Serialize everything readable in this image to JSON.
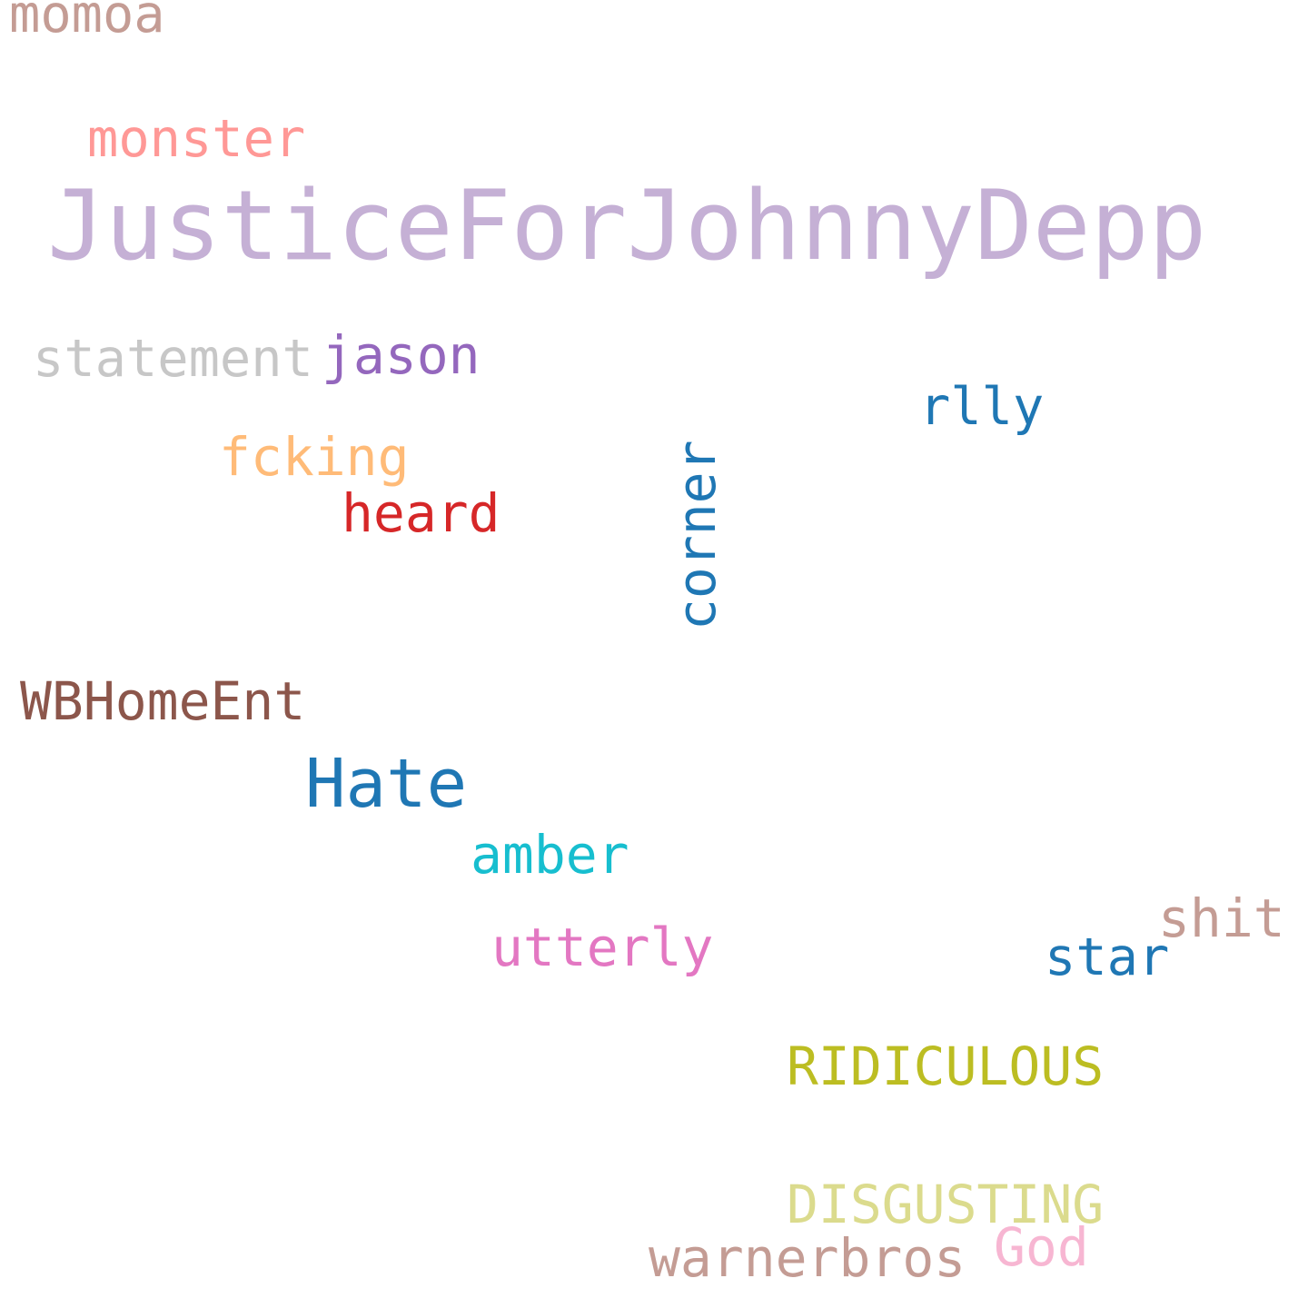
{
  "words": [
    {
      "text": "JusticeForJohnnyDepp",
      "color": "#c5b0d5"
    },
    {
      "text": "Hate",
      "color": "#1f77b4"
    },
    {
      "text": "WBHomeEnt",
      "color": "#8c564b"
    },
    {
      "text": "monster",
      "color": "#ff9896"
    },
    {
      "text": "momoa",
      "color": "#c49c94"
    },
    {
      "text": "statement",
      "color": "#c7c7c7"
    },
    {
      "text": "jason",
      "color": "#9467bd"
    },
    {
      "text": "fcking",
      "color": "#ffbb78"
    },
    {
      "text": "heard",
      "color": "#d62728"
    },
    {
      "text": "corner",
      "color": "#1f77b4",
      "orientation": "vertical"
    },
    {
      "text": "rlly",
      "color": "#1f77b4"
    },
    {
      "text": "amber",
      "color": "#17becf"
    },
    {
      "text": "utterly",
      "color": "#e377c2"
    },
    {
      "text": "shit",
      "color": "#c49c94"
    },
    {
      "text": "star",
      "color": "#1f77b4"
    },
    {
      "text": "RIDICULOUS",
      "color": "#bcbd22"
    },
    {
      "text": "DISGUSTING",
      "color": "#dbdb8d"
    },
    {
      "text": "God",
      "color": "#f7b6d2"
    },
    {
      "text": "warnerbros",
      "color": "#c49c94"
    }
  ]
}
